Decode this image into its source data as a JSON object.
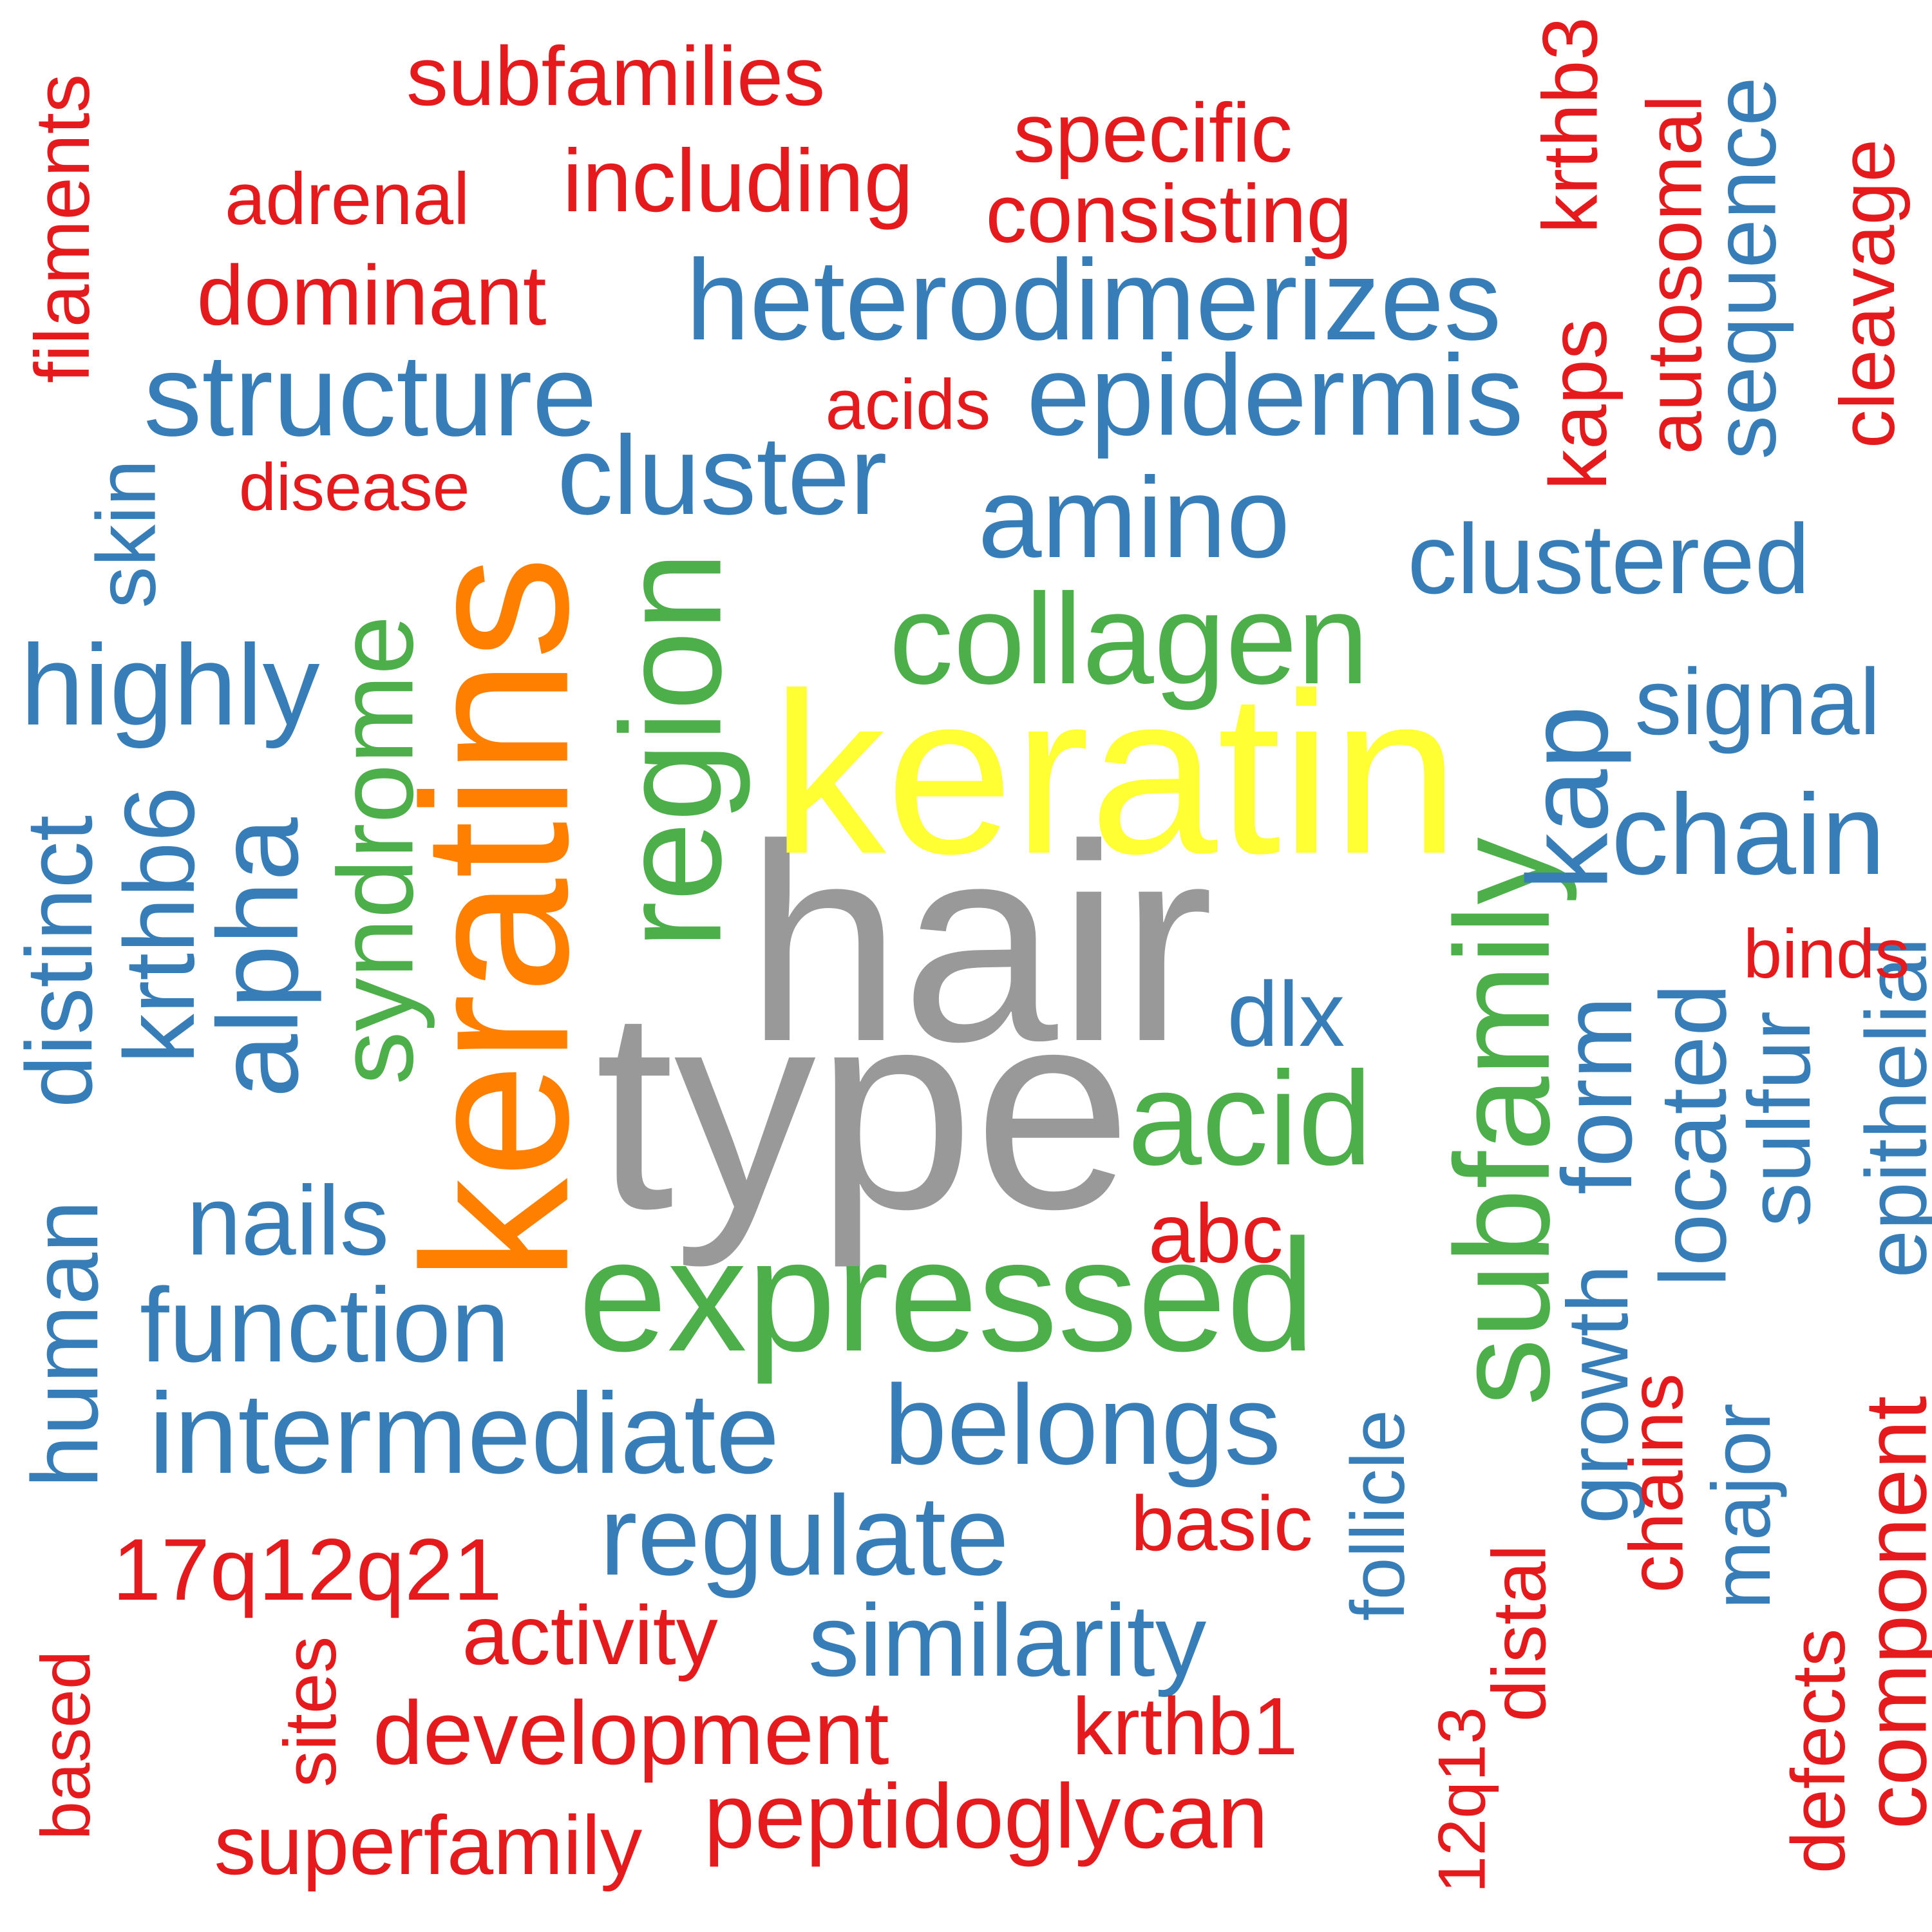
{
  "palette": {
    "red": "#e41a1c",
    "blue": "#377eb8",
    "green": "#4daf4a",
    "orange": "#ff7f00",
    "yellow": "#ffff33",
    "grey": "#999999"
  },
  "words": [
    {
      "text": "hair",
      "color": "grey",
      "rotated": false
    },
    {
      "text": "type",
      "color": "grey",
      "rotated": false
    },
    {
      "text": "keratin",
      "color": "yellow",
      "rotated": false
    },
    {
      "text": "keratins",
      "color": "orange",
      "rotated": true
    },
    {
      "text": "expressed",
      "color": "green",
      "rotated": false
    },
    {
      "text": "region",
      "color": "green",
      "rotated": true
    },
    {
      "text": "subfamily",
      "color": "green",
      "rotated": true
    },
    {
      "text": "collagen",
      "color": "green",
      "rotated": false
    },
    {
      "text": "acid",
      "color": "green",
      "rotated": false
    },
    {
      "text": "syndrome",
      "color": "green",
      "rotated": true
    },
    {
      "text": "heterodimerizes",
      "color": "blue",
      "rotated": false
    },
    {
      "text": "structure",
      "color": "blue",
      "rotated": false
    },
    {
      "text": "epidermis",
      "color": "blue",
      "rotated": false
    },
    {
      "text": "cluster",
      "color": "blue",
      "rotated": false
    },
    {
      "text": "amino",
      "color": "blue",
      "rotated": false
    },
    {
      "text": "clustered",
      "color": "blue",
      "rotated": false
    },
    {
      "text": "highly",
      "color": "blue",
      "rotated": false
    },
    {
      "text": "signal",
      "color": "blue",
      "rotated": false
    },
    {
      "text": "chain",
      "color": "blue",
      "rotated": false
    },
    {
      "text": "kap",
      "color": "blue",
      "rotated": true
    },
    {
      "text": "dlx",
      "color": "blue",
      "rotated": false
    },
    {
      "text": "nails",
      "color": "blue",
      "rotated": false
    },
    {
      "text": "function",
      "color": "blue",
      "rotated": false
    },
    {
      "text": "intermediate",
      "color": "blue",
      "rotated": false
    },
    {
      "text": "belongs",
      "color": "blue",
      "rotated": false
    },
    {
      "text": "regulate",
      "color": "blue",
      "rotated": false
    },
    {
      "text": "similarity",
      "color": "blue",
      "rotated": false
    },
    {
      "text": "alpha",
      "color": "blue",
      "rotated": true
    },
    {
      "text": "krthb6",
      "color": "blue",
      "rotated": true
    },
    {
      "text": "distinct",
      "color": "blue",
      "rotated": true
    },
    {
      "text": "skin",
      "color": "blue",
      "rotated": true
    },
    {
      "text": "human",
      "color": "blue",
      "rotated": true
    },
    {
      "text": "form",
      "color": "blue",
      "rotated": true
    },
    {
      "text": "located",
      "color": "blue",
      "rotated": true
    },
    {
      "text": "sulfur",
      "color": "blue",
      "rotated": true
    },
    {
      "text": "epithelial",
      "color": "blue",
      "rotated": true
    },
    {
      "text": "sequence",
      "color": "blue",
      "rotated": true
    },
    {
      "text": "growth",
      "color": "blue",
      "rotated": true
    },
    {
      "text": "follicle",
      "color": "blue",
      "rotated": true
    },
    {
      "text": "major",
      "color": "blue",
      "rotated": true
    },
    {
      "text": "subfamilies",
      "color": "red",
      "rotated": false
    },
    {
      "text": "specific",
      "color": "red",
      "rotated": false
    },
    {
      "text": "including",
      "color": "red",
      "rotated": false
    },
    {
      "text": "adrenal",
      "color": "red",
      "rotated": false
    },
    {
      "text": "consisting",
      "color": "red",
      "rotated": false
    },
    {
      "text": "dominant",
      "color": "red",
      "rotated": false
    },
    {
      "text": "acids",
      "color": "red",
      "rotated": false
    },
    {
      "text": "disease",
      "color": "red",
      "rotated": false
    },
    {
      "text": "binds",
      "color": "red",
      "rotated": false
    },
    {
      "text": "abc",
      "color": "red",
      "rotated": false
    },
    {
      "text": "basic",
      "color": "red",
      "rotated": false
    },
    {
      "text": "17q12q21",
      "color": "red",
      "rotated": false
    },
    {
      "text": "activity",
      "color": "red",
      "rotated": false
    },
    {
      "text": "development",
      "color": "red",
      "rotated": false
    },
    {
      "text": "krthb1",
      "color": "red",
      "rotated": false
    },
    {
      "text": "peptidoglycan",
      "color": "red",
      "rotated": false
    },
    {
      "text": "superfamily",
      "color": "red",
      "rotated": false
    },
    {
      "text": "filaments",
      "color": "red",
      "rotated": true
    },
    {
      "text": "krthb3",
      "color": "red",
      "rotated": true
    },
    {
      "text": "kaps",
      "color": "red",
      "rotated": true
    },
    {
      "text": "autosomal",
      "color": "red",
      "rotated": true
    },
    {
      "text": "cleavage",
      "color": "red",
      "rotated": true
    },
    {
      "text": "chains",
      "color": "red",
      "rotated": true
    },
    {
      "text": "component",
      "color": "red",
      "rotated": true
    },
    {
      "text": "defects",
      "color": "red",
      "rotated": true
    },
    {
      "text": "distal",
      "color": "red",
      "rotated": true
    },
    {
      "text": "12q13",
      "color": "red",
      "rotated": true
    },
    {
      "text": "sites",
      "color": "red",
      "rotated": true
    },
    {
      "text": "based",
      "color": "red",
      "rotated": true
    }
  ]
}
